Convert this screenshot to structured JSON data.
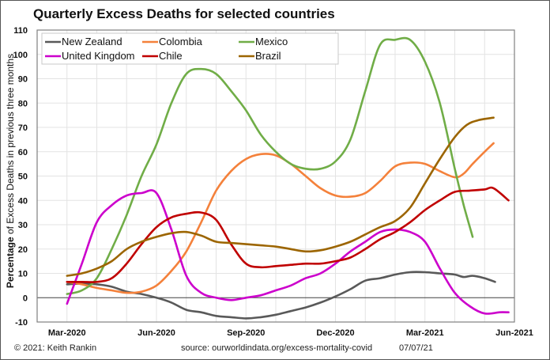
{
  "chart_data": {
    "type": "line",
    "title": "Quarterly Excess Deaths for selected countries",
    "ylabel_bold": "Percentage",
    "ylabel_rest": " of Excess Deaths in previous three months",
    "xlabel": "",
    "ylim": [
      -10,
      110
    ],
    "yticks": [
      -10,
      0,
      10,
      20,
      30,
      40,
      50,
      60,
      70,
      80,
      90,
      100,
      110
    ],
    "xlim_months": [
      -1,
      15
    ],
    "xticks": [
      {
        "m": 0,
        "label": "Mar-2020"
      },
      {
        "m": 3,
        "label": "Jun-2020"
      },
      {
        "m": 6,
        "label": "Sep-2020"
      },
      {
        "m": 9,
        "label": "Dec-2020"
      },
      {
        "m": 12,
        "label": "Mar-2021"
      },
      {
        "m": 15,
        "label": "Jun-2021"
      }
    ],
    "grid": true,
    "legend_position": "top-left",
    "x_unit": "months since Mar-2020",
    "series": [
      {
        "name": "New Zealand",
        "color": "#595959",
        "points": [
          [
            0,
            5.5
          ],
          [
            0.5,
            5.8
          ],
          [
            1,
            5.5
          ],
          [
            1.5,
            4.5
          ],
          [
            2,
            2.5
          ],
          [
            2.5,
            1.5
          ],
          [
            3,
            0
          ],
          [
            3.5,
            -2
          ],
          [
            4,
            -5
          ],
          [
            4.5,
            -6
          ],
          [
            5,
            -7.5
          ],
          [
            5.5,
            -8
          ],
          [
            6,
            -8.5
          ],
          [
            6.5,
            -8
          ],
          [
            7,
            -7
          ],
          [
            7.5,
            -5.5
          ],
          [
            8,
            -4
          ],
          [
            8.5,
            -2
          ],
          [
            9,
            0.5
          ],
          [
            9.5,
            3.5
          ],
          [
            10,
            7
          ],
          [
            10.5,
            8
          ],
          [
            11,
            9.5
          ],
          [
            11.5,
            10.5
          ],
          [
            12,
            10.5
          ],
          [
            12.5,
            10
          ],
          [
            13,
            9.5
          ],
          [
            13.3,
            8.5
          ],
          [
            13.6,
            9
          ],
          [
            14,
            8
          ],
          [
            14.35,
            6.5
          ]
        ]
      },
      {
        "name": "Colombia",
        "color": "#f4813b",
        "points": [
          [
            0,
            6.5
          ],
          [
            0.5,
            5.5
          ],
          [
            1,
            4
          ],
          [
            1.5,
            3
          ],
          [
            2,
            2
          ],
          [
            2.5,
            2.5
          ],
          [
            3,
            5
          ],
          [
            3.5,
            11
          ],
          [
            4,
            19
          ],
          [
            4.5,
            31
          ],
          [
            5,
            44
          ],
          [
            5.5,
            52
          ],
          [
            6,
            57
          ],
          [
            6.5,
            59
          ],
          [
            7,
            58.5
          ],
          [
            7.5,
            55
          ],
          [
            8,
            50
          ],
          [
            8.5,
            45
          ],
          [
            9,
            42
          ],
          [
            9.5,
            41.5
          ],
          [
            10,
            43
          ],
          [
            10.5,
            48
          ],
          [
            11,
            54
          ],
          [
            11.5,
            55.5
          ],
          [
            12,
            55
          ],
          [
            12.5,
            52
          ],
          [
            13,
            49.5
          ],
          [
            13.3,
            51
          ],
          [
            13.6,
            55
          ],
          [
            14,
            60
          ],
          [
            14.3,
            63.5
          ]
        ]
      },
      {
        "name": "Mexico",
        "color": "#70ad47",
        "points": [
          [
            0,
            1.5
          ],
          [
            0.5,
            3
          ],
          [
            1,
            8
          ],
          [
            1.5,
            20
          ],
          [
            2,
            34
          ],
          [
            2.5,
            50
          ],
          [
            3,
            63
          ],
          [
            3.5,
            80
          ],
          [
            4,
            92
          ],
          [
            4.5,
            94
          ],
          [
            5,
            92
          ],
          [
            5.5,
            85
          ],
          [
            6,
            77
          ],
          [
            6.5,
            67
          ],
          [
            7,
            60
          ],
          [
            7.5,
            55
          ],
          [
            8,
            53
          ],
          [
            8.5,
            53
          ],
          [
            9,
            56
          ],
          [
            9.5,
            65
          ],
          [
            10,
            85
          ],
          [
            10.5,
            104
          ],
          [
            11,
            106
          ],
          [
            11.5,
            106
          ],
          [
            12,
            97
          ],
          [
            12.5,
            80
          ],
          [
            13,
            53
          ],
          [
            13.3,
            38
          ],
          [
            13.6,
            25
          ]
        ]
      },
      {
        "name": "United Kingdom",
        "color": "#cc00cc",
        "points": [
          [
            0,
            -2.5
          ],
          [
            0.5,
            14
          ],
          [
            1,
            31
          ],
          [
            1.5,
            38
          ],
          [
            2,
            42
          ],
          [
            2.5,
            43
          ],
          [
            3,
            43
          ],
          [
            3.5,
            28
          ],
          [
            4,
            9
          ],
          [
            4.5,
            2
          ],
          [
            5,
            0
          ],
          [
            5.5,
            -1
          ],
          [
            6,
            0
          ],
          [
            6.5,
            1
          ],
          [
            7,
            3
          ],
          [
            7.5,
            5
          ],
          [
            8,
            8
          ],
          [
            8.5,
            10
          ],
          [
            9,
            14
          ],
          [
            9.5,
            19
          ],
          [
            10,
            23
          ],
          [
            10.5,
            27
          ],
          [
            11,
            28
          ],
          [
            11.5,
            27
          ],
          [
            12,
            23
          ],
          [
            12.5,
            12
          ],
          [
            13,
            2
          ],
          [
            13.5,
            -3.5
          ],
          [
            14,
            -6.5
          ],
          [
            14.5,
            -6
          ],
          [
            14.8,
            -6
          ]
        ]
      },
      {
        "name": "Chile",
        "color": "#c00000",
        "points": [
          [
            0,
            6.5
          ],
          [
            0.5,
            6.5
          ],
          [
            1,
            6.5
          ],
          [
            1.5,
            8
          ],
          [
            2,
            14
          ],
          [
            2.5,
            22
          ],
          [
            3,
            29
          ],
          [
            3.5,
            33
          ],
          [
            4,
            34.5
          ],
          [
            4.5,
            35
          ],
          [
            5,
            32
          ],
          [
            5.5,
            22
          ],
          [
            6,
            14
          ],
          [
            6.5,
            12.5
          ],
          [
            7,
            13
          ],
          [
            7.5,
            13.5
          ],
          [
            8,
            14
          ],
          [
            8.5,
            14
          ],
          [
            9,
            15
          ],
          [
            9.5,
            16.5
          ],
          [
            10,
            20
          ],
          [
            10.5,
            24
          ],
          [
            11,
            27
          ],
          [
            11.5,
            31
          ],
          [
            12,
            36
          ],
          [
            12.5,
            40
          ],
          [
            13,
            43.5
          ],
          [
            13.5,
            44
          ],
          [
            14,
            44.5
          ],
          [
            14.3,
            45
          ],
          [
            14.8,
            40
          ]
        ]
      },
      {
        "name": "Brazil",
        "color": "#9c6500",
        "points": [
          [
            0,
            9
          ],
          [
            0.5,
            10
          ],
          [
            1,
            12
          ],
          [
            1.5,
            15
          ],
          [
            2,
            20
          ],
          [
            2.5,
            23
          ],
          [
            3,
            25
          ],
          [
            3.5,
            26.5
          ],
          [
            4,
            27
          ],
          [
            4.5,
            25.5
          ],
          [
            5,
            23
          ],
          [
            5.5,
            22.5
          ],
          [
            6,
            22
          ],
          [
            6.5,
            21.5
          ],
          [
            7,
            21
          ],
          [
            7.5,
            20
          ],
          [
            8,
            19
          ],
          [
            8.5,
            19.5
          ],
          [
            9,
            21
          ],
          [
            9.5,
            23
          ],
          [
            10,
            26
          ],
          [
            10.5,
            29
          ],
          [
            11,
            31.5
          ],
          [
            11.5,
            37
          ],
          [
            12,
            47
          ],
          [
            12.5,
            57
          ],
          [
            13,
            66
          ],
          [
            13.4,
            71
          ],
          [
            13.8,
            73
          ],
          [
            14.3,
            74
          ]
        ]
      }
    ]
  },
  "footer": {
    "copyright": "© 2021: Keith Rankin",
    "source": "source:  ourworldindata.org/excess-mortality-covid",
    "date": "07/07/21"
  }
}
